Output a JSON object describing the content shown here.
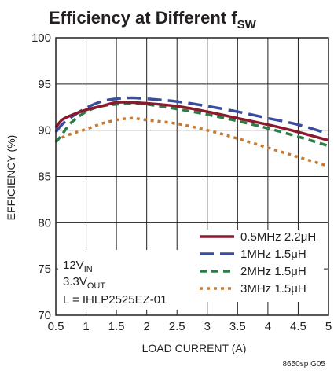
{
  "chart_data": {
    "type": "line",
    "title": "Efficiency at Different f",
    "title_subscript": "SW",
    "xlabel": "LOAD CURRENT (A)",
    "ylabel": "EFFICIENCY (%)",
    "xlim": [
      0.5,
      5
    ],
    "ylim": [
      70,
      100
    ],
    "xticks": [
      0.5,
      1,
      1.5,
      2,
      2.5,
      3,
      3.5,
      4,
      4.5,
      5
    ],
    "xtick_labels": [
      "0.5",
      "1",
      "1.5",
      "2",
      "2.5",
      "3",
      "3.5",
      "4",
      "4.5",
      "5"
    ],
    "yticks": [
      70,
      75,
      80,
      85,
      90,
      95,
      100
    ],
    "ytick_labels": [
      "70",
      "75",
      "80",
      "85",
      "90",
      "95",
      "100"
    ],
    "grid": true,
    "legend_position": "bottom-right",
    "annotations": [
      {
        "main": "12V",
        "sub": "IN"
      },
      {
        "main": "3.3V",
        "sub": "OUT"
      },
      {
        "main": "L = IHLP2525EZ-01",
        "sub": ""
      }
    ],
    "figure_code": "8650sp G05",
    "series": [
      {
        "name": "0.5MHz 2.2μH",
        "color": "#8b1a2e",
        "dash": "solid",
        "x": [
          0.5,
          0.6,
          0.75,
          1.0,
          1.25,
          1.5,
          1.75,
          2.0,
          2.5,
          3.0,
          3.5,
          4.0,
          4.5,
          5.0
        ],
        "y": [
          90.3,
          91.1,
          91.6,
          92.2,
          92.6,
          93.0,
          93.0,
          92.9,
          92.6,
          92.0,
          91.3,
          90.6,
          89.8,
          88.9
        ]
      },
      {
        "name": "1MHz 1.5μH",
        "color": "#3a4d9c",
        "dash": "long",
        "x": [
          0.5,
          0.6,
          0.75,
          1.0,
          1.25,
          1.5,
          1.75,
          2.0,
          2.5,
          3.0,
          3.5,
          4.0,
          4.5,
          5.0
        ],
        "y": [
          89.8,
          90.6,
          91.4,
          92.4,
          93.1,
          93.4,
          93.5,
          93.4,
          93.1,
          92.6,
          92.0,
          91.3,
          90.6,
          89.6
        ]
      },
      {
        "name": "2MHz 1.5μH",
        "color": "#2e7d47",
        "dash": "medium",
        "x": [
          0.5,
          0.6,
          0.75,
          1.0,
          1.25,
          1.5,
          1.75,
          2.0,
          2.5,
          3.0,
          3.5,
          4.0,
          4.5,
          5.0
        ],
        "y": [
          88.7,
          89.5,
          90.8,
          92.0,
          92.6,
          92.8,
          92.9,
          92.8,
          92.3,
          91.7,
          91.0,
          90.2,
          89.3,
          88.3
        ]
      },
      {
        "name": "3MHz 1.5μH",
        "color": "#c87a30",
        "dash": "dot",
        "x": [
          0.5,
          0.6,
          0.75,
          1.0,
          1.25,
          1.5,
          1.75,
          2.0,
          2.5,
          3.0,
          3.5,
          4.0,
          4.5,
          5.0
        ],
        "y": [
          88.8,
          89.2,
          89.6,
          90.1,
          90.7,
          91.1,
          91.3,
          91.1,
          90.7,
          90.0,
          89.1,
          88.1,
          87.1,
          86.1
        ]
      }
    ]
  }
}
